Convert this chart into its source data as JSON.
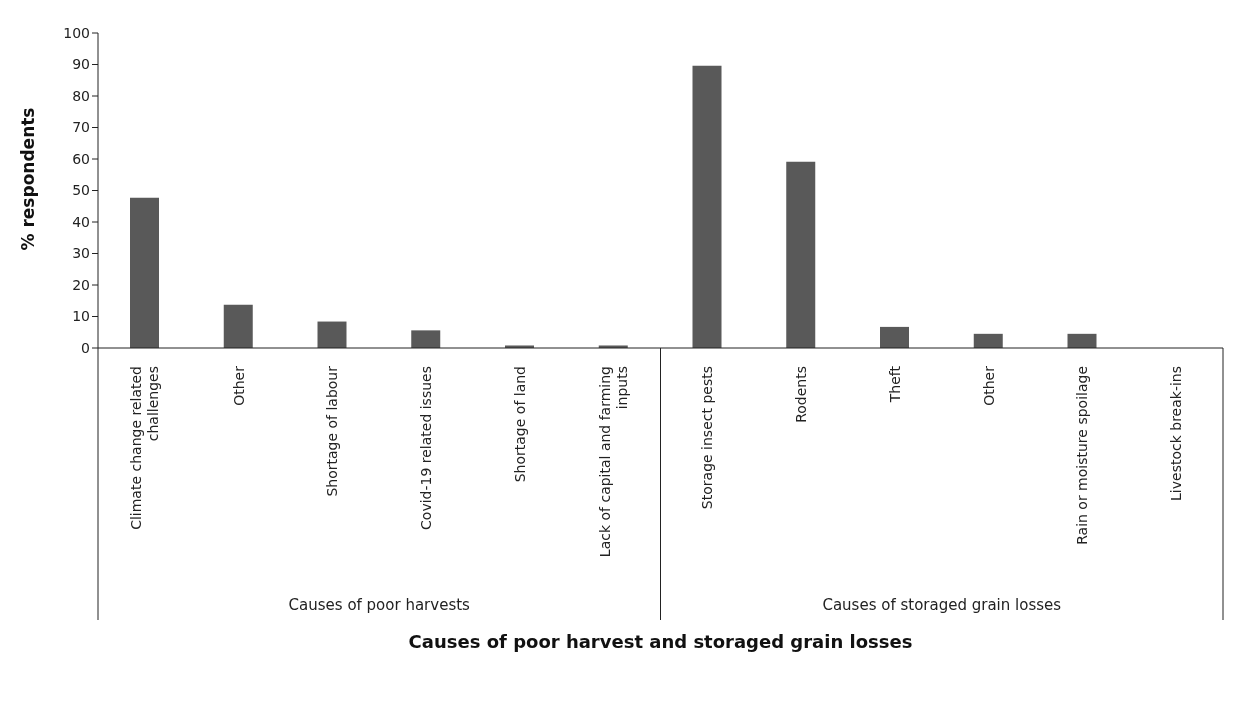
{
  "chart_data": {
    "type": "bar",
    "xlabel": "Causes of poor harvest and storaged grain losses",
    "ylabel": "% respondents",
    "categories": [
      "Climate change related challenges",
      "Other",
      "Shortage of labour",
      "Covid-19 related issues",
      "Shortage of land",
      "Lack of capital and farming inputs",
      "Storage insect pests",
      "Rodents",
      "Theft",
      "Other",
      "Rain or moisture spoilage",
      "Livestock break-ins"
    ],
    "values": [
      47.7,
      13.7,
      8.4,
      5.6,
      0.8,
      0.8,
      89.6,
      59.1,
      6.7,
      4.5,
      4.5,
      0
    ],
    "color": "#595959",
    "ylim": [
      0,
      100
    ],
    "yticks": [
      0,
      10,
      20,
      30,
      40,
      50,
      60,
      70,
      80,
      90,
      100
    ],
    "annotations": [
      "Causes of poor harvests",
      "Causes of storaged grain losses"
    ],
    "grid": false,
    "legend": false
  }
}
